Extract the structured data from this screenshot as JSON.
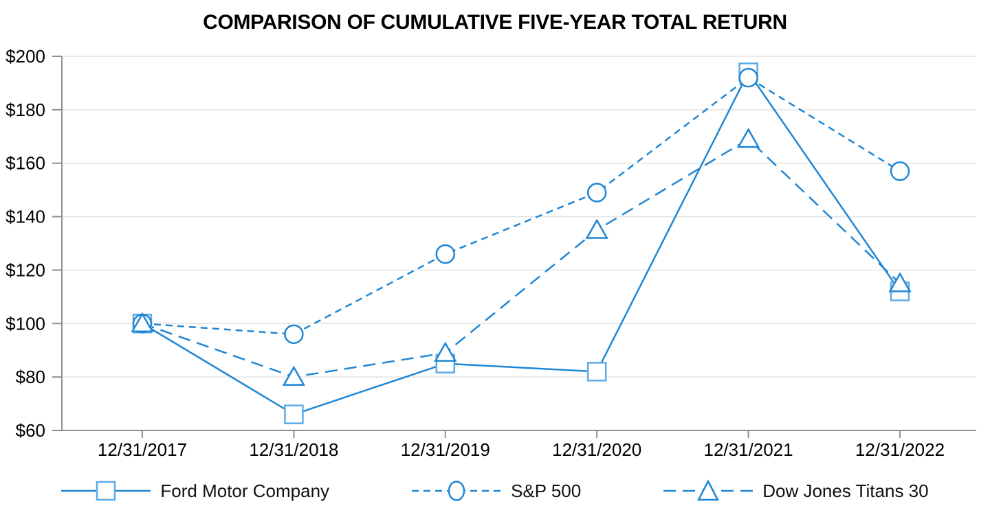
{
  "title": "COMPARISON OF CUMULATIVE FIVE-YEAR TOTAL RETURN",
  "chart_data": {
    "type": "line",
    "categories": [
      "12/31/2017",
      "12/31/2018",
      "12/31/2019",
      "12/31/2020",
      "12/31/2021",
      "12/31/2022"
    ],
    "series": [
      {
        "name": "Ford Motor Company",
        "marker": "square",
        "line_style": "solid",
        "values": [
          100,
          66,
          85,
          82,
          194,
          112
        ]
      },
      {
        "name": "S&P 500",
        "marker": "circle",
        "line_style": "dashed-short",
        "values": [
          100,
          96,
          126,
          149,
          192,
          157
        ]
      },
      {
        "name": "Dow Jones Titans 30",
        "marker": "triangle",
        "line_style": "dashed-long",
        "values": [
          100,
          80,
          89,
          135,
          169,
          115
        ]
      }
    ],
    "ylim": [
      60,
      200
    ],
    "ytick_step": 20,
    "ytick_labels": [
      "$60",
      "$80",
      "$100",
      "$120",
      "$140",
      "$160",
      "$180",
      "$200"
    ],
    "xlabel": "",
    "ylabel": "",
    "grid": "horizontal",
    "legend_position": "bottom",
    "colors": {
      "line": "#1e86d4",
      "square_marker": "#5aabe8",
      "grid": "#e4e4e4",
      "axis": "#8f8f8f",
      "text": "#000000"
    }
  }
}
